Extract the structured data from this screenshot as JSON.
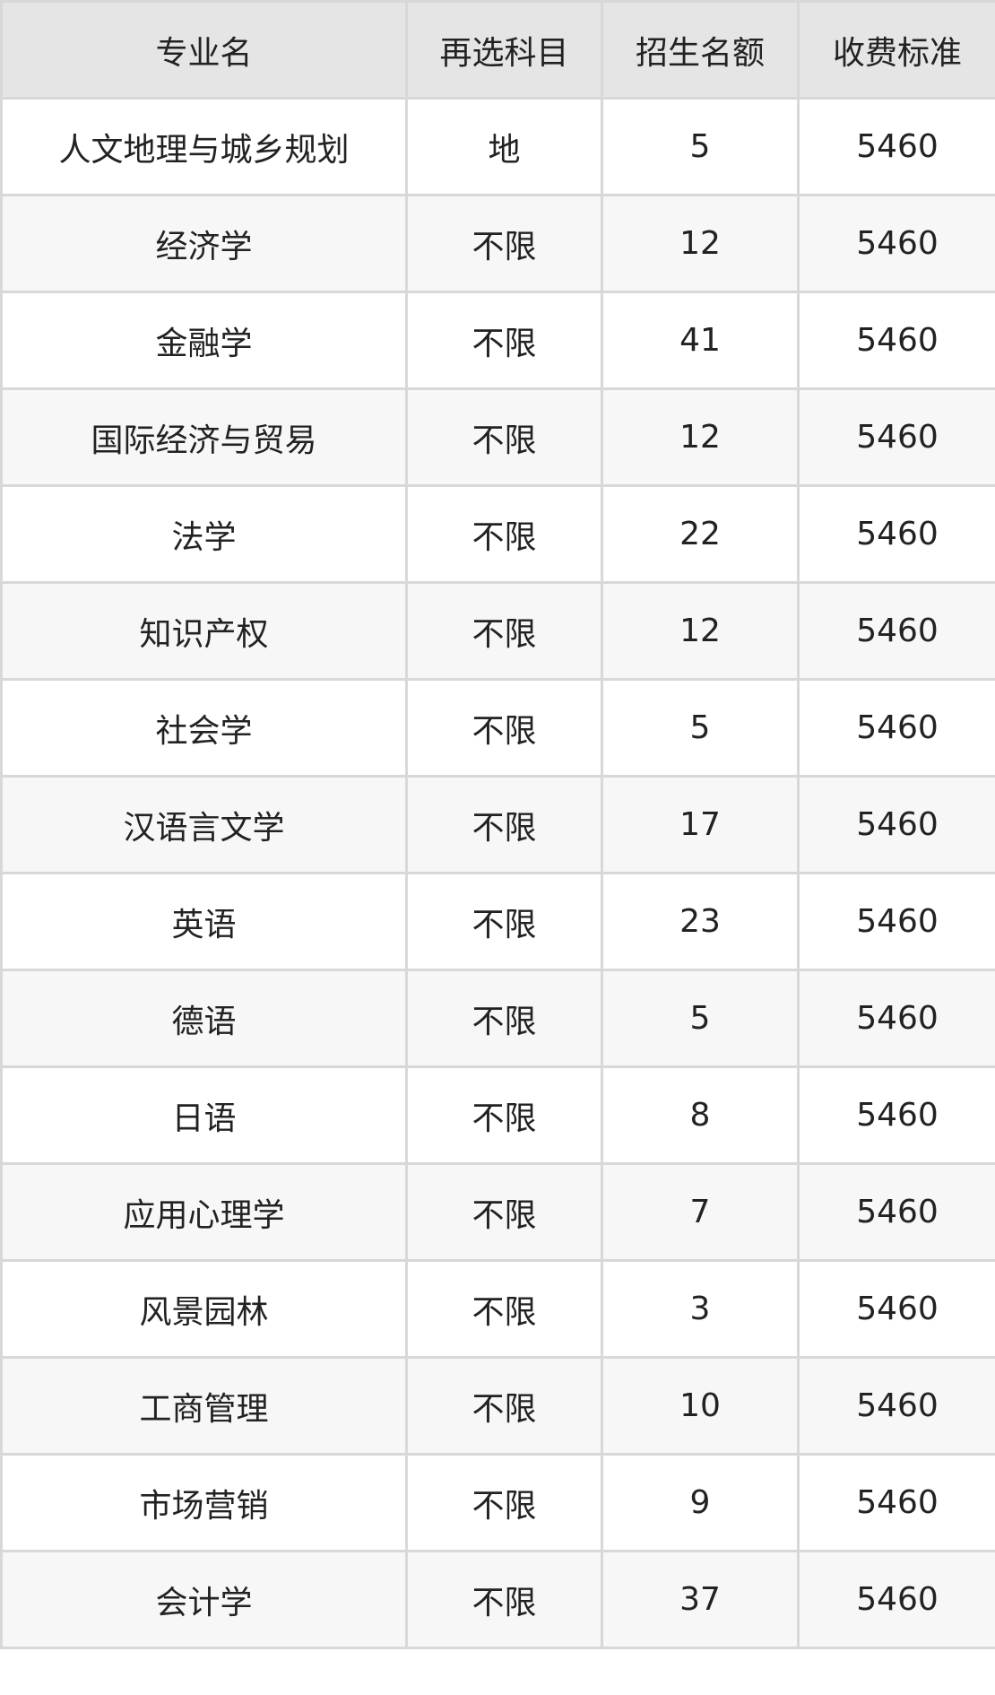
{
  "table": {
    "headers": [
      "专业名",
      "再选科目",
      "招生名额",
      "收费标准"
    ],
    "rows": [
      [
        "人文地理与城乡规划",
        "地",
        "5",
        "5460"
      ],
      [
        "经济学",
        "不限",
        "12",
        "5460"
      ],
      [
        "金融学",
        "不限",
        "41",
        "5460"
      ],
      [
        "国际经济与贸易",
        "不限",
        "12",
        "5460"
      ],
      [
        "法学",
        "不限",
        "22",
        "5460"
      ],
      [
        "知识产权",
        "不限",
        "12",
        "5460"
      ],
      [
        "社会学",
        "不限",
        "5",
        "5460"
      ],
      [
        "汉语言文学",
        "不限",
        "17",
        "5460"
      ],
      [
        "英语",
        "不限",
        "23",
        "5460"
      ],
      [
        "德语",
        "不限",
        "5",
        "5460"
      ],
      [
        "日语",
        "不限",
        "8",
        "5460"
      ],
      [
        "应用心理学",
        "不限",
        "7",
        "5460"
      ],
      [
        "风景园林",
        "不限",
        "3",
        "5460"
      ],
      [
        "工商管理",
        "不限",
        "10",
        "5460"
      ],
      [
        "市场营销",
        "不限",
        "9",
        "5460"
      ],
      [
        "会计学",
        "不限",
        "37",
        "5460"
      ]
    ]
  },
  "colors": {
    "header_bg": "#e5e5e5",
    "alt_row_bg": "#f7f7f7",
    "border": "#d8d8d8"
  }
}
